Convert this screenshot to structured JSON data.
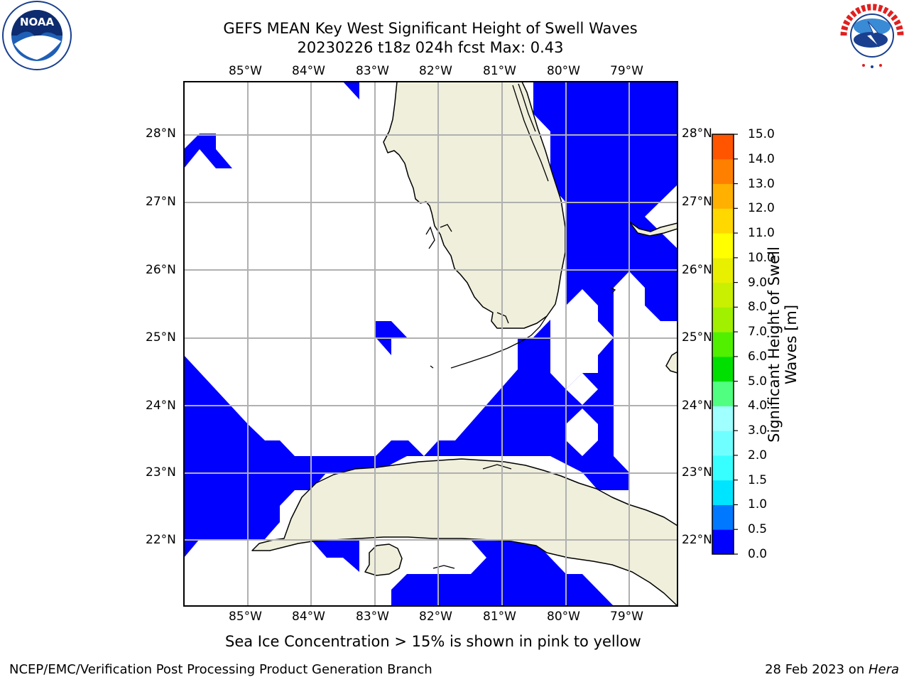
{
  "header": {
    "title_line1": "GEFS MEAN Key West Significant Height of Swell Waves",
    "title_line2": "20230226 t18z 024h fcst   Max: 0.43"
  },
  "logos": {
    "noaa": {
      "text": "NOAA",
      "ring_top": "NATIONAL OCEANIC AND ATMOSPHERIC ADMINISTRATION",
      "ring_bottom": "U.S. DEPARTMENT OF COMMERCE"
    },
    "nws": {
      "text": "NATIONAL WEATHER SERVICE"
    }
  },
  "map": {
    "lon_labels": [
      "85°W",
      "84°W",
      "83°W",
      "82°W",
      "81°W",
      "80°W",
      "79°W"
    ],
    "lat_labels": [
      "28°N",
      "27°N",
      "26°N",
      "25°N",
      "24°N",
      "23°N",
      "22°N"
    ],
    "lon_values": [
      -85,
      -84,
      -83,
      -82,
      -81,
      -80,
      -79
    ],
    "lat_values": [
      28,
      27,
      26,
      25,
      24,
      23,
      22
    ],
    "extent": {
      "lon_min": -86,
      "lon_max": -78.25,
      "lat_min": 21,
      "lat_max": 28.75
    },
    "colors": {
      "land": "#efefdc",
      "swell_low": "#0000ff",
      "grid": "#b0b0b0",
      "coast": "#000000"
    }
  },
  "colorbar": {
    "label_line1": "Significant Height of Swell",
    "label_line2": "Waves [m]",
    "ticks": [
      "0.0",
      "0.5",
      "1.0",
      "1.5",
      "2.0",
      "3.0",
      "4.0",
      "5.0",
      "6.0",
      "7.0",
      "8.0",
      "9.0",
      "10.0",
      "11.0",
      "12.0",
      "13.0",
      "14.0",
      "15.0"
    ],
    "colors": [
      "#0000ff",
      "#0078ff",
      "#00e5ff",
      "#38ffff",
      "#70ffff",
      "#a0ffff",
      "#50ff80",
      "#00e000",
      "#50f000",
      "#a0f000",
      "#c8f000",
      "#e8f000",
      "#ffff00",
      "#ffd800",
      "#ffb000",
      "#ff8000",
      "#ff5500",
      "#ff2a00",
      "#ff0000"
    ]
  },
  "caption": "Sea Ice Concentration > 15% is shown in pink to yellow",
  "footer": {
    "left": "NCEP/EMC/Verification Post Processing Product Generation Branch",
    "right_date": "28 Feb 2023 on ",
    "right_host": "Hera"
  }
}
